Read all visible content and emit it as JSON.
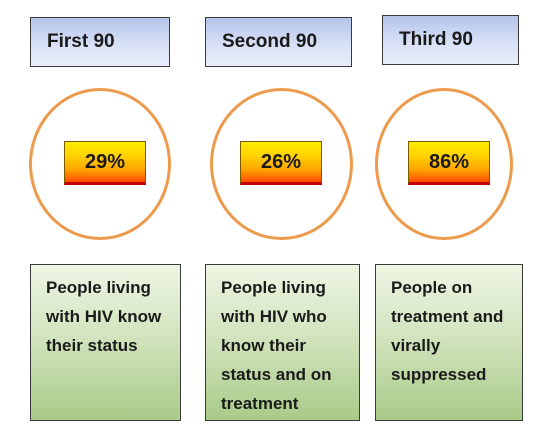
{
  "stages": [
    {
      "heading": "First 90",
      "percentage": "29%",
      "description": "People living with HIV know their status"
    },
    {
      "heading": "Second 90",
      "percentage": "26%",
      "description": "People living with HIV who know their status and on treatment"
    },
    {
      "heading": "Third 90",
      "percentage": "86%",
      "description": "People on treatment and virally suppressed"
    }
  ],
  "colors": {
    "heading_fill": "#c6d2f0",
    "ring_stroke": "#ec9a4c",
    "percentage_fill_top": "#ffec00",
    "percentage_fill_bottom": "#ff4a00",
    "description_fill": "#c4dba9"
  }
}
